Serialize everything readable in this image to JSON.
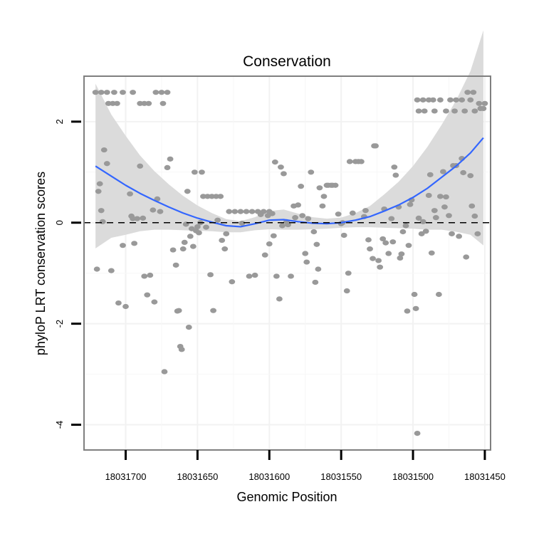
{
  "chart_data": {
    "type": "scatter",
    "title": "Conservation",
    "xlabel": "Genomic Position",
    "ylabel": "phyloP LRT conservation scores",
    "x_reversed": true,
    "xlim": [
      18031729,
      18031446
    ],
    "ylim": [
      -4.5,
      2.9
    ],
    "x_ticks": [
      18031700,
      18031650,
      18031600,
      18031550,
      18031500,
      18031450
    ],
    "x_tick_labels": [
      "18031700",
      "18031650",
      "18031600",
      "18031550",
      "18031500",
      "18031450"
    ],
    "y_ticks": [
      2,
      0,
      -2,
      -4
    ],
    "y_tick_labels": [
      "2",
      "0",
      "-2",
      "-4"
    ],
    "grid": true,
    "reference_line": {
      "y": 0,
      "style": "dashed"
    },
    "colors": {
      "points": "#999999",
      "smooth_line": "#3366ff",
      "ribbon": "#d9d9d9",
      "panel_border": "#7f7f7f",
      "grid": "#f2f2f2"
    },
    "series": [
      {
        "name": "phyloP LRT score",
        "kind": "points",
        "points": [
          [
            18031721,
            2.58
          ],
          [
            18031717,
            2.58
          ],
          [
            18031713,
            2.58
          ],
          [
            18031708,
            2.58
          ],
          [
            18031702,
            2.58
          ],
          [
            18031695,
            2.58
          ],
          [
            18031679,
            2.58
          ],
          [
            18031675,
            2.58
          ],
          [
            18031671,
            2.58
          ],
          [
            18031712,
            2.36
          ],
          [
            18031709,
            2.36
          ],
          [
            18031706,
            2.36
          ],
          [
            18031690,
            2.36
          ],
          [
            18031687,
            2.36
          ],
          [
            18031684,
            2.36
          ],
          [
            18031674,
            2.36
          ],
          [
            18031718,
            0.77
          ],
          [
            18031719,
            0.62
          ],
          [
            18031717,
            0.24
          ],
          [
            18031716,
            0.02
          ],
          [
            18031715,
            1.44
          ],
          [
            18031713,
            1.17
          ],
          [
            18031710,
            -0.95
          ],
          [
            18031720,
            -0.92
          ],
          [
            18031705,
            -1.59
          ],
          [
            18031702,
            -0.45
          ],
          [
            18031700,
            -1.66
          ],
          [
            18031697,
            0.57
          ],
          [
            18031696,
            0.13
          ],
          [
            18031695,
            0.08
          ],
          [
            18031694,
            -0.41
          ],
          [
            18031692,
            0.08
          ],
          [
            18031690,
            1.12
          ],
          [
            18031688,
            0.09
          ],
          [
            18031687,
            -1.06
          ],
          [
            18031685,
            -1.43
          ],
          [
            18031683,
            -1.04
          ],
          [
            18031681,
            0.25
          ],
          [
            18031680,
            -1.57
          ],
          [
            18031678,
            0.47
          ],
          [
            18031676,
            0.22
          ],
          [
            18031673,
            -2.95
          ],
          [
            18031671,
            1.09
          ],
          [
            18031669,
            1.26
          ],
          [
            18031667,
            -0.54
          ],
          [
            18031665,
            -0.84
          ],
          [
            18031664,
            -1.75
          ],
          [
            18031663,
            -1.74
          ],
          [
            18031662,
            -2.45
          ],
          [
            18031661,
            -2.51
          ],
          [
            18031660,
            -0.52
          ],
          [
            18031659,
            -0.39
          ],
          [
            18031658,
            -0.03
          ],
          [
            18031657,
            0.62
          ],
          [
            18031656,
            -2.07
          ],
          [
            18031655,
            -0.27
          ],
          [
            18031654,
            -0.12
          ],
          [
            18031653,
            -0.47
          ],
          [
            18031652,
            1.0
          ],
          [
            18031651,
            -0.16
          ],
          [
            18031650,
            -0.08
          ],
          [
            18031649,
            -0.2
          ],
          [
            18031648,
            0.0
          ],
          [
            18031647,
            1.0
          ],
          [
            18031646,
            0.52
          ],
          [
            18031643,
            0.52
          ],
          [
            18031640,
            0.52
          ],
          [
            18031637,
            0.52
          ],
          [
            18031634,
            0.52
          ],
          [
            18031644,
            -0.09
          ],
          [
            18031641,
            -1.03
          ],
          [
            18031639,
            -1.74
          ],
          [
            18031636,
            0.05
          ],
          [
            18031633,
            -0.35
          ],
          [
            18031631,
            -0.52
          ],
          [
            18031630,
            -0.22
          ],
          [
            18031628,
            0.22
          ],
          [
            18031624,
            0.22
          ],
          [
            18031620,
            0.22
          ],
          [
            18031616,
            0.22
          ],
          [
            18031612,
            0.22
          ],
          [
            18031608,
            0.22
          ],
          [
            18031604,
            0.22
          ],
          [
            18031600,
            0.22
          ],
          [
            18031626,
            -1.17
          ],
          [
            18031619,
            -0.01
          ],
          [
            18031614,
            -1.06
          ],
          [
            18031610,
            -1.04
          ],
          [
            18031606,
            0.16
          ],
          [
            18031603,
            -0.64
          ],
          [
            18031601,
            0.14
          ],
          [
            18031600,
            -0.42
          ],
          [
            18031598,
            0.18
          ],
          [
            18031597,
            -0.26
          ],
          [
            18031596,
            1.2
          ],
          [
            18031595,
            -1.06
          ],
          [
            18031593,
            -1.51
          ],
          [
            18031592,
            1.1
          ],
          [
            18031591,
            -0.06
          ],
          [
            18031590,
            0.97
          ],
          [
            18031588,
            0.02
          ],
          [
            18031587,
            -0.04
          ],
          [
            18031585,
            -1.06
          ],
          [
            18031583,
            0.33
          ],
          [
            18031582,
            0.1
          ],
          [
            18031580,
            0.35
          ],
          [
            18031578,
            0.72
          ],
          [
            18031577,
            0.14
          ],
          [
            18031575,
            -0.61
          ],
          [
            18031574,
            -0.78
          ],
          [
            18031573,
            0.08
          ],
          [
            18031571,
            1.0
          ],
          [
            18031569,
            -0.18
          ],
          [
            18031568,
            -1.18
          ],
          [
            18031567,
            -0.43
          ],
          [
            18031566,
            -0.92
          ],
          [
            18031565,
            0.69
          ],
          [
            18031563,
            0.33
          ],
          [
            18031562,
            0.52
          ],
          [
            18031560,
            0.74
          ],
          [
            18031559,
            0.74
          ],
          [
            18031557,
            0.74
          ],
          [
            18031556,
            0.74
          ],
          [
            18031554,
            0.74
          ],
          [
            18031552,
            0.17
          ],
          [
            18031550,
            -0.02
          ],
          [
            18031549,
            0.0
          ],
          [
            18031548,
            -0.25
          ],
          [
            18031546,
            -1.35
          ],
          [
            18031545,
            -1.0
          ],
          [
            18031544,
            1.21
          ],
          [
            18031542,
            0.19
          ],
          [
            18031540,
            1.21
          ],
          [
            18031538,
            1.21
          ],
          [
            18031536,
            1.21
          ],
          [
            18031534,
            0.12
          ],
          [
            18031533,
            0.24
          ],
          [
            18031531,
            -0.34
          ],
          [
            18031530,
            -0.52
          ],
          [
            18031528,
            -0.71
          ],
          [
            18031527,
            1.52
          ],
          [
            18031526,
            1.52
          ],
          [
            18031524,
            -0.75
          ],
          [
            18031523,
            -0.88
          ],
          [
            18031521,
            -0.32
          ],
          [
            18031520,
            0.27
          ],
          [
            18031519,
            -0.4
          ],
          [
            18031517,
            -0.61
          ],
          [
            18031515,
            0.08
          ],
          [
            18031514,
            -0.38
          ],
          [
            18031513,
            1.1
          ],
          [
            18031512,
            0.94
          ],
          [
            18031510,
            0.31
          ],
          [
            18031509,
            -0.7
          ],
          [
            18031508,
            -0.62
          ],
          [
            18031507,
            -0.18
          ],
          [
            18031505,
            -0.06
          ],
          [
            18031504,
            -1.75
          ],
          [
            18031503,
            -0.45
          ],
          [
            18031502,
            0.36
          ],
          [
            18031501,
            0.45
          ],
          [
            18031499,
            -1.42
          ],
          [
            18031498,
            -1.7
          ],
          [
            18031497,
            -4.17
          ],
          [
            18031496,
            0.09
          ],
          [
            18031494,
            -0.22
          ],
          [
            18031493,
            0.02
          ],
          [
            18031491,
            -0.17
          ],
          [
            18031489,
            0.54
          ],
          [
            18031488,
            0.95
          ],
          [
            18031487,
            -0.6
          ],
          [
            18031485,
            0.24
          ],
          [
            18031484,
            0.1
          ],
          [
            18031482,
            -1.42
          ],
          [
            18031481,
            0.52
          ],
          [
            18031479,
            1.01
          ],
          [
            18031478,
            0.31
          ],
          [
            18031477,
            0.51
          ],
          [
            18031475,
            0.14
          ],
          [
            18031473,
            -0.22
          ],
          [
            18031472,
            1.13
          ],
          [
            18031470,
            1.13
          ],
          [
            18031468,
            -0.27
          ],
          [
            18031466,
            1.27
          ],
          [
            18031465,
            0.99
          ],
          [
            18031463,
            -0.68
          ],
          [
            18031460,
            0.93
          ],
          [
            18031459,
            0.33
          ],
          [
            18031457,
            0.13
          ],
          [
            18031455,
            -0.22
          ],
          [
            18031453,
            2.26
          ],
          [
            18031451,
            2.26
          ],
          [
            18031497,
            2.43
          ],
          [
            18031493,
            2.43
          ],
          [
            18031489,
            2.43
          ],
          [
            18031486,
            2.43
          ],
          [
            18031481,
            2.43
          ],
          [
            18031474,
            2.43
          ],
          [
            18031470,
            2.43
          ],
          [
            18031466,
            2.43
          ],
          [
            18031460,
            2.43
          ],
          [
            18031496,
            2.21
          ],
          [
            18031492,
            2.21
          ],
          [
            18031485,
            2.21
          ],
          [
            18031477,
            2.21
          ],
          [
            18031471,
            2.21
          ],
          [
            18031464,
            2.21
          ],
          [
            18031457,
            2.21
          ],
          [
            18031462,
            2.58
          ],
          [
            18031458,
            2.58
          ],
          [
            18031454,
            2.36
          ],
          [
            18031450,
            2.36
          ]
        ]
      },
      {
        "name": "smooth fit",
        "kind": "line",
        "x": [
          18031721,
          18031710,
          18031700,
          18031690,
          18031680,
          18031670,
          18031660,
          18031650,
          18031640,
          18031630,
          18031620,
          18031610,
          18031600,
          18031590,
          18031580,
          18031570,
          18031560,
          18031550,
          18031540,
          18031530,
          18031520,
          18031510,
          18031500,
          18031490,
          18031480,
          18031470,
          18031460,
          18031451
        ],
        "y": [
          1.12,
          0.92,
          0.74,
          0.58,
          0.44,
          0.31,
          0.19,
          0.09,
          0.01,
          -0.06,
          -0.08,
          -0.02,
          0.05,
          0.06,
          0.02,
          -0.01,
          -0.02,
          0.0,
          0.05,
          0.12,
          0.23,
          0.35,
          0.5,
          0.68,
          0.9,
          1.12,
          1.38,
          1.68
        ],
        "lower": [
          1.63,
          1.22,
          0.98,
          0.75,
          0.58,
          0.45,
          0.34,
          0.25,
          0.18,
          0.13,
          0.11,
          0.13,
          0.18,
          0.2,
          0.16,
          0.12,
          0.1,
          0.1,
          0.14,
          0.21,
          0.33,
          0.46,
          0.62,
          0.82,
          1.04,
          1.3,
          1.62,
          2.13
        ],
        "upper_note": "ribbon half-widths"
      }
    ]
  }
}
